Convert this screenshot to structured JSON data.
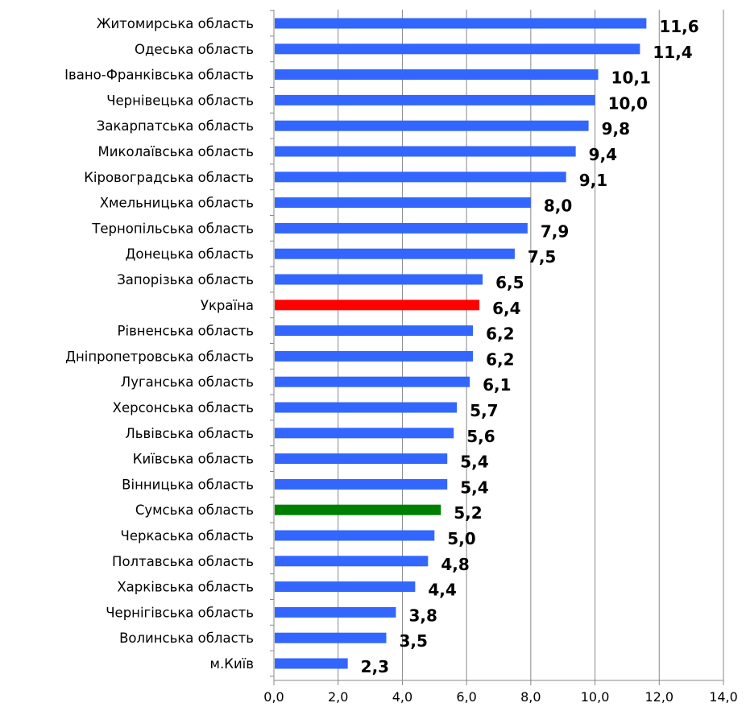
{
  "chart_data": {
    "type": "bar",
    "orientation": "horizontal",
    "categories": [
      "Житомирська область",
      "Одеська область",
      "Івано-Франківська область",
      "Чернівецька область",
      "Закарпатська область",
      "Миколаївська область",
      "Кіровоградська область",
      "Хмельницька область",
      "Тернопільська область",
      "Донецька область",
      "Запорізька область",
      "Україна",
      "Рівненська область",
      "Дніпропетровська область",
      "Луганська область",
      "Херсонська область",
      "Львівська область",
      "Київська область",
      "Вінницька область",
      "Сумська область",
      "Черкаська область",
      "Полтавська область",
      "Харківська область",
      "Чернігівська область",
      "Волинська область",
      "м.Київ"
    ],
    "values": [
      11.6,
      11.4,
      10.1,
      10.0,
      9.8,
      9.4,
      9.1,
      8.0,
      7.9,
      7.5,
      6.5,
      6.4,
      6.2,
      6.2,
      6.1,
      5.7,
      5.6,
      5.4,
      5.4,
      5.2,
      5.0,
      4.8,
      4.4,
      3.8,
      3.5,
      2.3
    ],
    "value_labels": [
      "11,6",
      "11,4",
      "10,1",
      "10,0",
      "9,8",
      "9,4",
      "9,1",
      "8,0",
      "7,9",
      "7,5",
      "6,5",
      "6,4",
      "6,2",
      "6,2",
      "6,1",
      "5,7",
      "5,6",
      "5,4",
      "5,4",
      "5,2",
      "5,0",
      "4,8",
      "4,4",
      "3,8",
      "3,5",
      "2,3"
    ],
    "xlim": [
      0,
      14
    ],
    "x_ticks": [
      "0,0",
      "2,0",
      "4,0",
      "6,0",
      "8,0",
      "10,0",
      "12,0",
      "14,0"
    ],
    "grid": true,
    "colors": {
      "default": "#3366ff",
      "Україна": "#ff0000",
      "Сумська область": "#008000",
      "grid": "#888888"
    },
    "title": "",
    "xlabel": "",
    "ylabel": ""
  }
}
